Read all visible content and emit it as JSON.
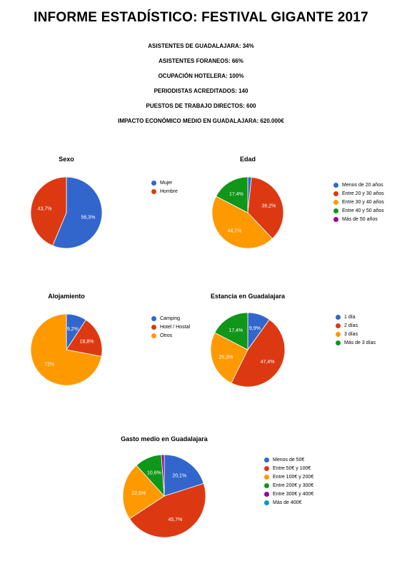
{
  "report": {
    "title": "INFORME ESTADÍSTICO: FESTIVAL GIGANTE 2017",
    "stats": [
      "ASISTENTES DE GUADALAJARA: 34%",
      "ASISTENTES FORANEOS: 66%",
      "OCUPACIÓN HOTELERA: 100%",
      "PERIODISTAS ACREDITADOS:  140",
      "PUESTOS DE TRABAJO DIRECTOS: 600",
      "IMPACTO ECONÓMICO MEDIO EN GUADALAJARA:  620.000€"
    ]
  },
  "chart_data": [
    {
      "id": "sexo",
      "type": "pie",
      "title": "Sexo",
      "legend_position": "right",
      "categories": [
        "Mujer",
        "Hombre"
      ],
      "values": [
        56.3,
        43.7
      ],
      "data_labels": [
        "56,3%",
        "43,7%"
      ],
      "colors": [
        "#3366cc",
        "#dc3912"
      ]
    },
    {
      "id": "edad",
      "type": "pie",
      "title": "Edad",
      "legend_position": "right",
      "categories": [
        "Menos de 20 años",
        "Entre 20 y 30 años",
        "Entre 30 y 40 años",
        "Entre 40 y 50 años",
        "Más de 50 años"
      ],
      "values": [
        1.7,
        36.2,
        44.7,
        17.4,
        0
      ],
      "data_labels": [
        "",
        "36,2%",
        "44,7%",
        "17,4%",
        ""
      ],
      "colors": [
        "#3366cc",
        "#dc3912",
        "#ff9900",
        "#109618",
        "#990099"
      ]
    },
    {
      "id": "alojamiento",
      "type": "pie",
      "title": "Alojamiento",
      "legend_position": "right",
      "categories": [
        "Camping",
        "Hotel / Hostal",
        "Otros"
      ],
      "values": [
        9.2,
        18.8,
        72
      ],
      "data_labels": [
        "9,2%",
        "18,8%",
        "72%"
      ],
      "colors": [
        "#3366cc",
        "#dc3912",
        "#ff9900"
      ]
    },
    {
      "id": "estancia",
      "type": "pie",
      "title": "Estancia en Guadalajara",
      "legend_position": "right",
      "categories": [
        "1 día",
        "2 días",
        "3 días",
        "Más de 3 días"
      ],
      "values": [
        9.9,
        47.4,
        25.3,
        17.4
      ],
      "data_labels": [
        "9,9%",
        "47,4%",
        "25,3%",
        "17,4%"
      ],
      "colors": [
        "#3366cc",
        "#dc3912",
        "#ff9900",
        "#109618"
      ]
    },
    {
      "id": "gasto",
      "type": "pie",
      "title": "Gasto medio en Guadalajara",
      "legend_position": "right",
      "categories": [
        "Menos de 50€",
        "Entre 50€ y 100€",
        "Entre 100€ y 200€",
        "Entre 200€ y 300€",
        "Entre 300€ y 400€",
        "Más de 400€"
      ],
      "values": [
        20.1,
        45.7,
        22.5,
        10.6,
        1.1,
        0
      ],
      "data_labels": [
        "20,1%",
        "45,7%",
        "22,5%",
        "10,6%",
        "",
        ""
      ],
      "colors": [
        "#3366cc",
        "#dc3912",
        "#ff9900",
        "#109618",
        "#990099",
        "#0099c6"
      ]
    }
  ]
}
